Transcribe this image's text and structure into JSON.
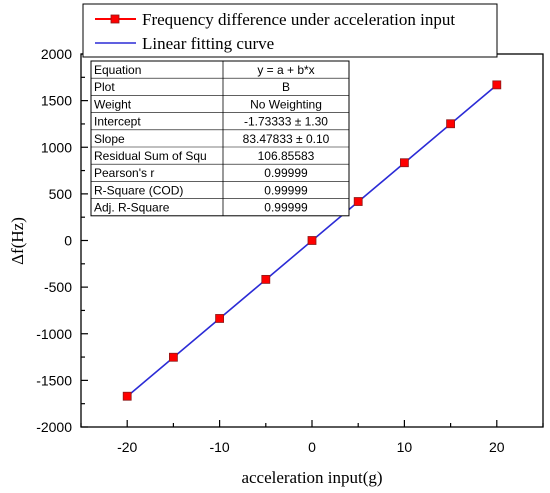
{
  "chart_data": {
    "type": "line",
    "xlabel": "acceleration input(g)",
    "ylabel": "Δf(Hz)",
    "xlim": [
      -25,
      25
    ],
    "ylim": [
      -2000,
      2000
    ],
    "xticks": [
      -20,
      -10,
      0,
      10,
      20
    ],
    "yticks": [
      -2000,
      -1500,
      -1000,
      -500,
      0,
      500,
      1000,
      1500,
      2000
    ],
    "grid": false,
    "legend_position": "top-left",
    "series": [
      {
        "name": "Frequency difference under acceleration input",
        "style": "markers",
        "color": "#ff0000",
        "x": [
          -20,
          -15,
          -10,
          -5,
          0,
          5,
          10,
          15,
          20
        ],
        "y": [
          -1670,
          -1252,
          -836,
          -417,
          0,
          418,
          834,
          1252,
          1669
        ]
      },
      {
        "name": "Linear fitting curve",
        "style": "line",
        "color": "#2b2bd6",
        "intercept": -1.73333,
        "slope": 83.47833,
        "x_range": [
          -20,
          20
        ]
      }
    ],
    "stats_table": [
      [
        "Equation",
        "y = a + b*x"
      ],
      [
        "Plot",
        "B"
      ],
      [
        "Weight",
        "No Weighting"
      ],
      [
        "Intercept",
        "-1.73333 ± 1.30"
      ],
      [
        "Slope",
        "83.47833 ± 0.10"
      ],
      [
        "Residual Sum of Squ",
        "106.85583"
      ],
      [
        "Pearson's r",
        "0.99999"
      ],
      [
        "R-Square (COD)",
        "0.99999"
      ],
      [
        "Adj. R-Square",
        "0.99999"
      ]
    ]
  }
}
